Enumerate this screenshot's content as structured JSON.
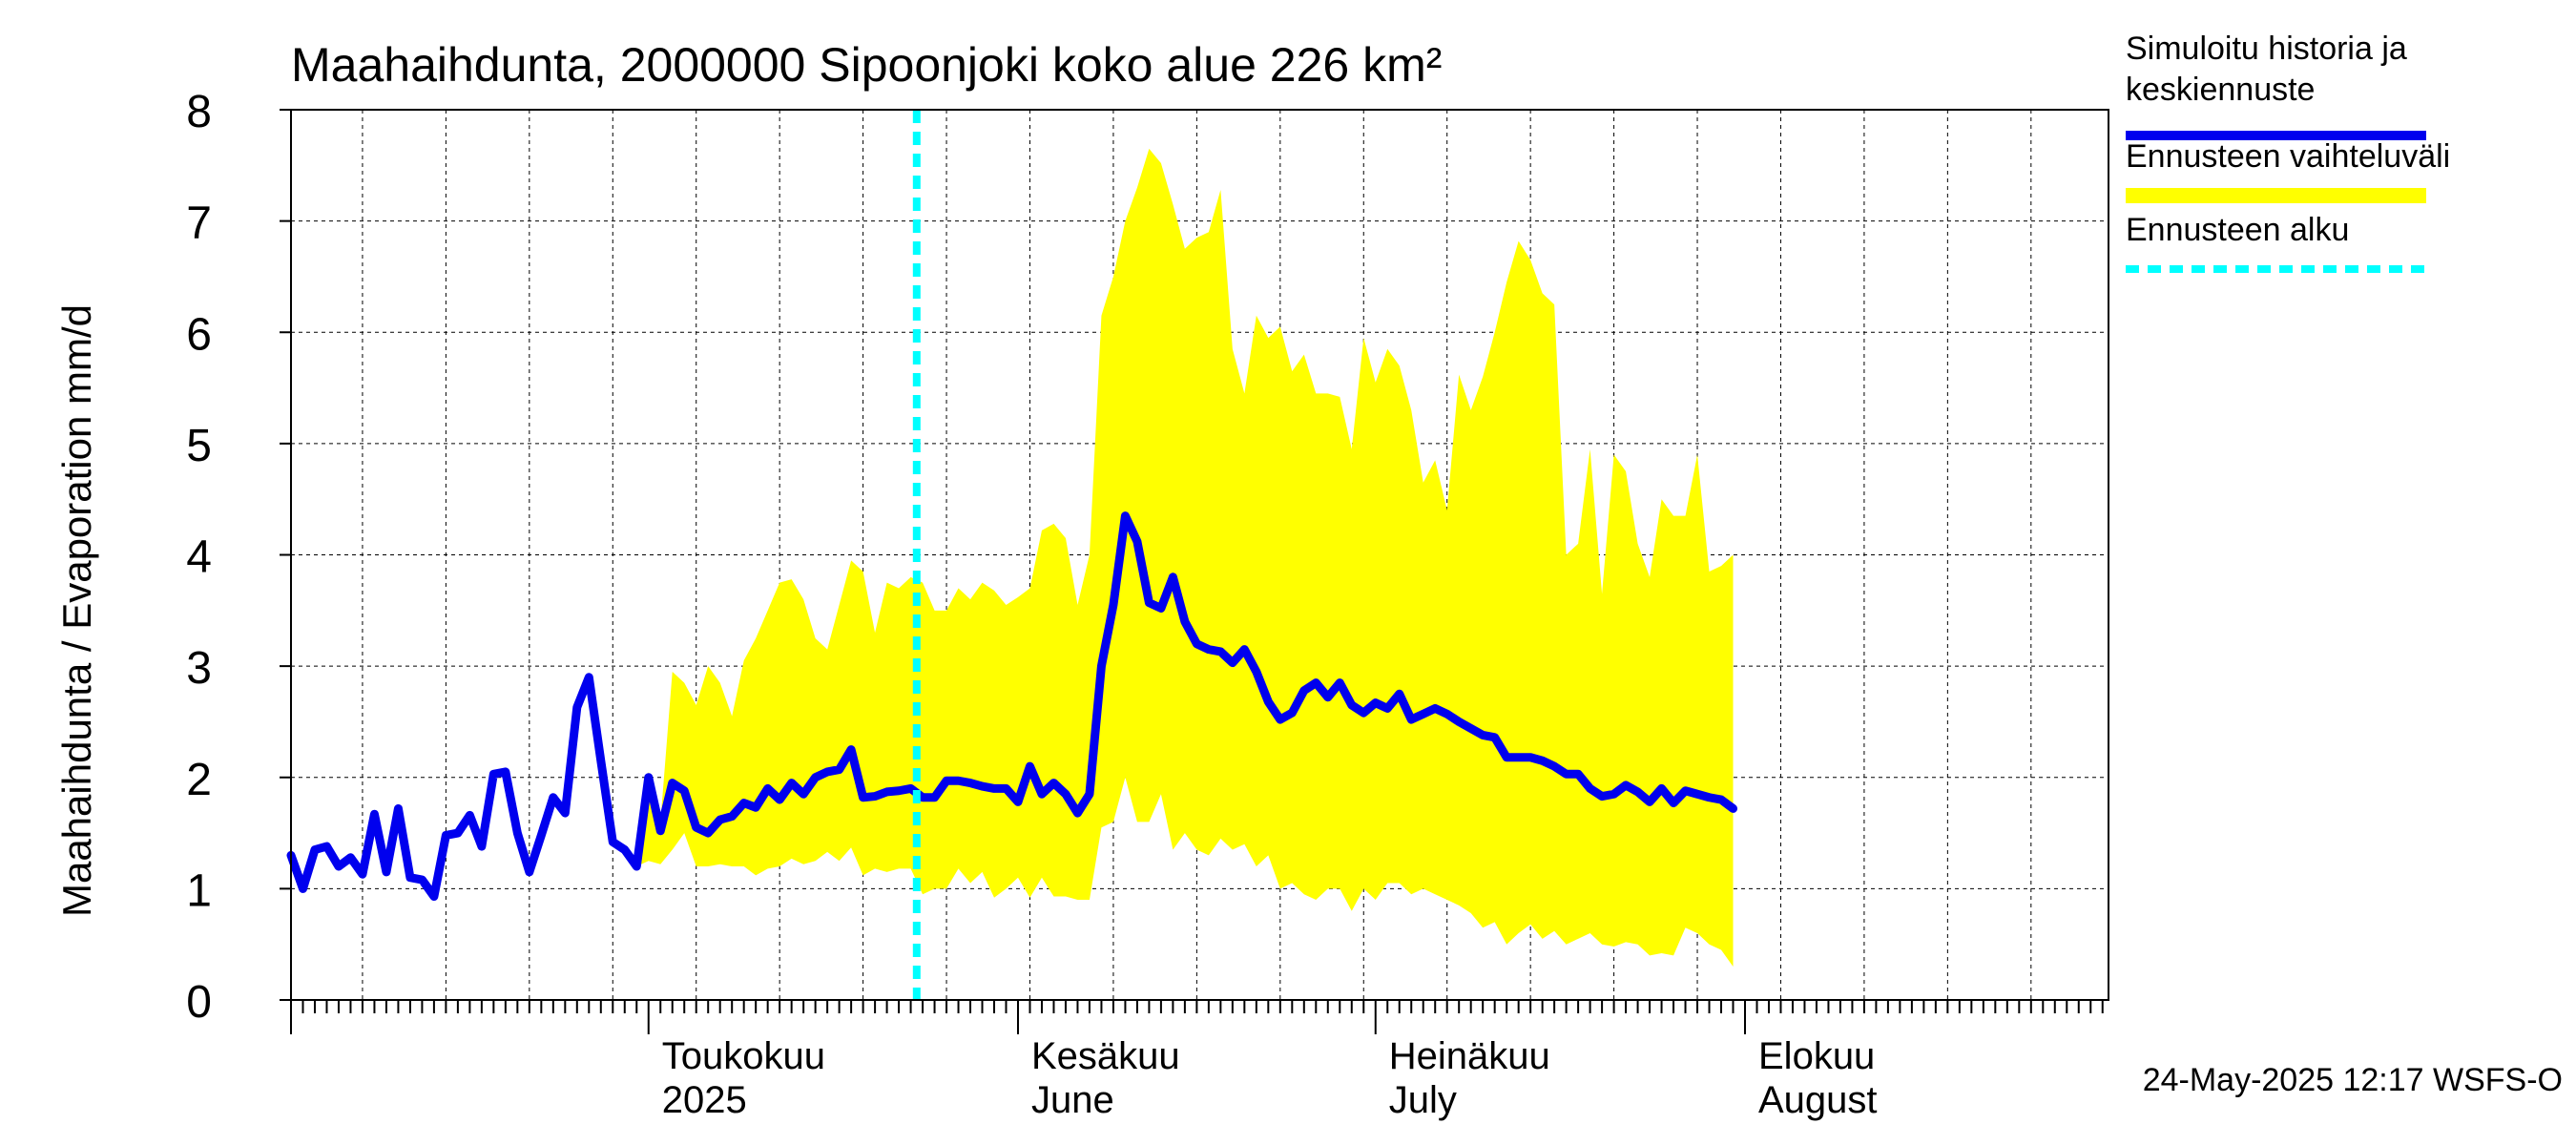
{
  "chart_data": {
    "type": "area",
    "title": "Maahaihdunta, 2000000 Sipoonjoki koko alue 226 km²",
    "ylabel": "Maahaihdunta / Evaporation   mm/d",
    "ylim": [
      0,
      8
    ],
    "yticks": [
      0,
      1,
      2,
      3,
      4,
      5,
      6,
      7,
      8
    ],
    "xlim": [
      "2025-04-01",
      "2025-08-31"
    ],
    "grid": true,
    "legend_position": "right",
    "forecast_start": "2025-05-24",
    "timestamp": "24-May-2025 12:17 WSFS-O",
    "month_labels": [
      {
        "date": "2025-05-01",
        "line1": "Toukokuu",
        "line2": "2025"
      },
      {
        "date": "2025-06-01",
        "line1": "Kesäkuu",
        "line2": "June"
      },
      {
        "date": "2025-07-01",
        "line1": "Heinäkuu",
        "line2": "July"
      },
      {
        "date": "2025-08-01",
        "line1": "Elokuu",
        "line2": "August"
      }
    ],
    "legend": [
      {
        "label_line1": "Simuloitu historia ja",
        "label_line2": "keskiennuste",
        "color": "#0000ee",
        "style": "thick-line"
      },
      {
        "label_line1": "Ennusteen vaihteluväli",
        "label_line2": "",
        "color": "#ffff00",
        "style": "band"
      },
      {
        "label_line1": "Ennusteen alku",
        "label_line2": "",
        "color": "#00ffff",
        "style": "dashed"
      }
    ],
    "series": [
      {
        "name": "Simuloitu historia ja keskiennuste",
        "color": "#0000ee",
        "points": [
          [
            "2025-04-01",
            1.3
          ],
          [
            "2025-04-02",
            1.0
          ],
          [
            "2025-04-03",
            1.35
          ],
          [
            "2025-04-04",
            1.38
          ],
          [
            "2025-04-05",
            1.2
          ],
          [
            "2025-04-06",
            1.28
          ],
          [
            "2025-04-07",
            1.13
          ],
          [
            "2025-04-08",
            1.67
          ],
          [
            "2025-04-09",
            1.15
          ],
          [
            "2025-04-10",
            1.72
          ],
          [
            "2025-04-11",
            1.1
          ],
          [
            "2025-04-12",
            1.08
          ],
          [
            "2025-04-13",
            0.93
          ],
          [
            "2025-04-14",
            1.48
          ],
          [
            "2025-04-15",
            1.5
          ],
          [
            "2025-04-16",
            1.66
          ],
          [
            "2025-04-17",
            1.38
          ],
          [
            "2025-04-18",
            2.03
          ],
          [
            "2025-04-19",
            2.05
          ],
          [
            "2025-04-20",
            1.5
          ],
          [
            "2025-04-21",
            1.15
          ],
          [
            "2025-04-22",
            1.48
          ],
          [
            "2025-04-23",
            1.82
          ],
          [
            "2025-04-24",
            1.68
          ],
          [
            "2025-04-25",
            2.63
          ],
          [
            "2025-04-26",
            2.9
          ],
          [
            "2025-04-27",
            2.15
          ],
          [
            "2025-04-28",
            1.42
          ],
          [
            "2025-04-29",
            1.35
          ],
          [
            "2025-04-30",
            1.2
          ],
          [
            "2025-05-01",
            2.0
          ],
          [
            "2025-05-02",
            1.52
          ],
          [
            "2025-05-03",
            1.95
          ],
          [
            "2025-05-04",
            1.88
          ],
          [
            "2025-05-05",
            1.55
          ],
          [
            "2025-05-06",
            1.5
          ],
          [
            "2025-05-07",
            1.62
          ],
          [
            "2025-05-08",
            1.65
          ],
          [
            "2025-05-09",
            1.77
          ],
          [
            "2025-05-10",
            1.73
          ],
          [
            "2025-05-11",
            1.9
          ],
          [
            "2025-05-12",
            1.8
          ],
          [
            "2025-05-13",
            1.95
          ],
          [
            "2025-05-14",
            1.85
          ],
          [
            "2025-05-15",
            2.0
          ],
          [
            "2025-05-16",
            2.05
          ],
          [
            "2025-05-17",
            2.07
          ],
          [
            "2025-05-18",
            2.25
          ],
          [
            "2025-05-19",
            1.82
          ],
          [
            "2025-05-20",
            1.83
          ],
          [
            "2025-05-21",
            1.87
          ],
          [
            "2025-05-22",
            1.88
          ],
          [
            "2025-05-23",
            1.9
          ],
          [
            "2025-05-24",
            1.82
          ],
          [
            "2025-05-25",
            1.82
          ],
          [
            "2025-05-26",
            1.97
          ],
          [
            "2025-05-27",
            1.97
          ],
          [
            "2025-05-28",
            1.95
          ],
          [
            "2025-05-29",
            1.92
          ],
          [
            "2025-05-30",
            1.9
          ],
          [
            "2025-05-31",
            1.9
          ],
          [
            "2025-06-01",
            1.78
          ],
          [
            "2025-06-02",
            2.1
          ],
          [
            "2025-06-03",
            1.85
          ],
          [
            "2025-06-04",
            1.95
          ],
          [
            "2025-06-05",
            1.85
          ],
          [
            "2025-06-06",
            1.68
          ],
          [
            "2025-06-07",
            1.85
          ],
          [
            "2025-06-08",
            3.0
          ],
          [
            "2025-06-09",
            3.55
          ],
          [
            "2025-06-10",
            4.35
          ],
          [
            "2025-06-11",
            4.12
          ],
          [
            "2025-06-12",
            3.57
          ],
          [
            "2025-06-13",
            3.52
          ],
          [
            "2025-06-14",
            3.8
          ],
          [
            "2025-06-15",
            3.4
          ],
          [
            "2025-06-16",
            3.2
          ],
          [
            "2025-06-17",
            3.15
          ],
          [
            "2025-06-18",
            3.13
          ],
          [
            "2025-06-19",
            3.03
          ],
          [
            "2025-06-20",
            3.15
          ],
          [
            "2025-06-21",
            2.95
          ],
          [
            "2025-06-22",
            2.68
          ],
          [
            "2025-06-23",
            2.52
          ],
          [
            "2025-06-24",
            2.58
          ],
          [
            "2025-06-25",
            2.78
          ],
          [
            "2025-06-26",
            2.85
          ],
          [
            "2025-06-27",
            2.72
          ],
          [
            "2025-06-28",
            2.85
          ],
          [
            "2025-06-29",
            2.65
          ],
          [
            "2025-06-30",
            2.58
          ],
          [
            "2025-07-01",
            2.67
          ],
          [
            "2025-07-02",
            2.62
          ],
          [
            "2025-07-03",
            2.75
          ],
          [
            "2025-07-04",
            2.52
          ],
          [
            "2025-07-05",
            2.57
          ],
          [
            "2025-07-06",
            2.62
          ],
          [
            "2025-07-07",
            2.57
          ],
          [
            "2025-07-08",
            2.5
          ],
          [
            "2025-07-09",
            2.44
          ],
          [
            "2025-07-10",
            2.38
          ],
          [
            "2025-07-11",
            2.36
          ],
          [
            "2025-07-12",
            2.18
          ],
          [
            "2025-07-13",
            2.18
          ],
          [
            "2025-07-14",
            2.18
          ],
          [
            "2025-07-15",
            2.15
          ],
          [
            "2025-07-16",
            2.1
          ],
          [
            "2025-07-17",
            2.03
          ],
          [
            "2025-07-18",
            2.03
          ],
          [
            "2025-07-19",
            1.9
          ],
          [
            "2025-07-20",
            1.83
          ],
          [
            "2025-07-21",
            1.85
          ],
          [
            "2025-07-22",
            1.93
          ],
          [
            "2025-07-23",
            1.87
          ],
          [
            "2025-07-24",
            1.78
          ],
          [
            "2025-07-25",
            1.9
          ],
          [
            "2025-07-26",
            1.77
          ],
          [
            "2025-07-27",
            1.88
          ],
          [
            "2025-07-28",
            1.85
          ],
          [
            "2025-07-29",
            1.82
          ],
          [
            "2025-07-30",
            1.8
          ],
          [
            "2025-07-31",
            1.72
          ]
        ]
      }
    ],
    "band": {
      "name": "Ennusteen vaihteluväli",
      "color": "#ffff00",
      "points": [
        [
          "2025-04-30",
          1.2,
          1.2
        ],
        [
          "2025-05-01",
          1.25,
          2.05
        ],
        [
          "2025-05-02",
          1.22,
          1.6
        ],
        [
          "2025-05-03",
          1.35,
          2.95
        ],
        [
          "2025-05-04",
          1.5,
          2.85
        ],
        [
          "2025-05-05",
          1.2,
          2.65
        ],
        [
          "2025-05-06",
          1.2,
          3.0
        ],
        [
          "2025-05-07",
          1.22,
          2.85
        ],
        [
          "2025-05-08",
          1.2,
          2.55
        ],
        [
          "2025-05-09",
          1.2,
          3.05
        ],
        [
          "2025-05-10",
          1.12,
          3.25
        ],
        [
          "2025-05-11",
          1.18,
          3.5
        ],
        [
          "2025-05-12",
          1.2,
          3.75
        ],
        [
          "2025-05-13",
          1.27,
          3.78
        ],
        [
          "2025-05-14",
          1.22,
          3.6
        ],
        [
          "2025-05-15",
          1.25,
          3.25
        ],
        [
          "2025-05-16",
          1.33,
          3.15
        ],
        [
          "2025-05-17",
          1.25,
          3.55
        ],
        [
          "2025-05-18",
          1.37,
          3.95
        ],
        [
          "2025-05-19",
          1.12,
          3.85
        ],
        [
          "2025-05-20",
          1.18,
          3.3
        ],
        [
          "2025-05-21",
          1.15,
          3.75
        ],
        [
          "2025-05-22",
          1.18,
          3.7
        ],
        [
          "2025-05-23",
          1.18,
          3.8
        ],
        [
          "2025-05-24",
          0.95,
          3.75
        ],
        [
          "2025-05-25",
          1.0,
          3.5
        ],
        [
          "2025-05-26",
          1.0,
          3.5
        ],
        [
          "2025-05-27",
          1.18,
          3.7
        ],
        [
          "2025-05-28",
          1.05,
          3.6
        ],
        [
          "2025-05-29",
          1.15,
          3.75
        ],
        [
          "2025-05-30",
          0.92,
          3.68
        ],
        [
          "2025-05-31",
          1.0,
          3.55
        ],
        [
          "2025-06-01",
          1.1,
          3.62
        ],
        [
          "2025-06-02",
          0.92,
          3.7
        ],
        [
          "2025-06-03",
          1.1,
          4.22
        ],
        [
          "2025-06-04",
          0.93,
          4.28
        ],
        [
          "2025-06-05",
          0.93,
          4.15
        ],
        [
          "2025-06-06",
          0.9,
          3.55
        ],
        [
          "2025-06-07",
          0.9,
          4.0
        ],
        [
          "2025-06-08",
          1.55,
          6.15
        ],
        [
          "2025-06-09",
          1.6,
          6.5
        ],
        [
          "2025-06-10",
          2.0,
          7.0
        ],
        [
          "2025-06-11",
          1.6,
          7.3
        ],
        [
          "2025-06-12",
          1.6,
          7.65
        ],
        [
          "2025-06-13",
          1.85,
          7.52
        ],
        [
          "2025-06-14",
          1.35,
          7.15
        ],
        [
          "2025-06-15",
          1.5,
          6.75
        ],
        [
          "2025-06-16",
          1.35,
          6.85
        ],
        [
          "2025-06-17",
          1.3,
          6.9
        ],
        [
          "2025-06-18",
          1.45,
          7.28
        ],
        [
          "2025-06-19",
          1.35,
          5.85
        ],
        [
          "2025-06-20",
          1.4,
          5.45
        ],
        [
          "2025-06-21",
          1.2,
          6.15
        ],
        [
          "2025-06-22",
          1.3,
          5.95
        ],
        [
          "2025-06-23",
          1.0,
          6.05
        ],
        [
          "2025-06-24",
          1.05,
          5.65
        ],
        [
          "2025-06-25",
          0.95,
          5.8
        ],
        [
          "2025-06-26",
          0.9,
          5.45
        ],
        [
          "2025-06-27",
          1.0,
          5.45
        ],
        [
          "2025-06-28",
          1.0,
          5.42
        ],
        [
          "2025-06-29",
          0.8,
          4.95
        ],
        [
          "2025-06-30",
          1.0,
          5.95
        ],
        [
          "2025-07-01",
          0.9,
          5.55
        ],
        [
          "2025-07-02",
          1.05,
          5.85
        ],
        [
          "2025-07-03",
          1.05,
          5.7
        ],
        [
          "2025-07-04",
          0.95,
          5.3
        ],
        [
          "2025-07-05",
          1.0,
          4.65
        ],
        [
          "2025-07-06",
          0.95,
          4.85
        ],
        [
          "2025-07-07",
          0.9,
          4.4
        ],
        [
          "2025-07-08",
          0.85,
          5.62
        ],
        [
          "2025-07-09",
          0.78,
          5.3
        ],
        [
          "2025-07-10",
          0.65,
          5.6
        ],
        [
          "2025-07-11",
          0.7,
          6.0
        ],
        [
          "2025-07-12",
          0.5,
          6.45
        ],
        [
          "2025-07-13",
          0.6,
          6.82
        ],
        [
          "2025-07-14",
          0.68,
          6.65
        ],
        [
          "2025-07-15",
          0.55,
          6.35
        ],
        [
          "2025-07-16",
          0.62,
          6.25
        ],
        [
          "2025-07-17",
          0.5,
          4.0
        ],
        [
          "2025-07-18",
          0.55,
          4.1
        ],
        [
          "2025-07-19",
          0.6,
          4.95
        ],
        [
          "2025-07-20",
          0.5,
          3.65
        ],
        [
          "2025-07-21",
          0.48,
          4.9
        ],
        [
          "2025-07-22",
          0.52,
          4.75
        ],
        [
          "2025-07-23",
          0.5,
          4.1
        ],
        [
          "2025-07-24",
          0.4,
          3.8
        ],
        [
          "2025-07-25",
          0.42,
          4.5
        ],
        [
          "2025-07-26",
          0.4,
          4.35
        ],
        [
          "2025-07-27",
          0.65,
          4.35
        ],
        [
          "2025-07-28",
          0.6,
          4.9
        ],
        [
          "2025-07-29",
          0.5,
          3.85
        ],
        [
          "2025-07-30",
          0.45,
          3.9
        ],
        [
          "2025-07-31",
          0.3,
          4.0
        ]
      ]
    }
  }
}
